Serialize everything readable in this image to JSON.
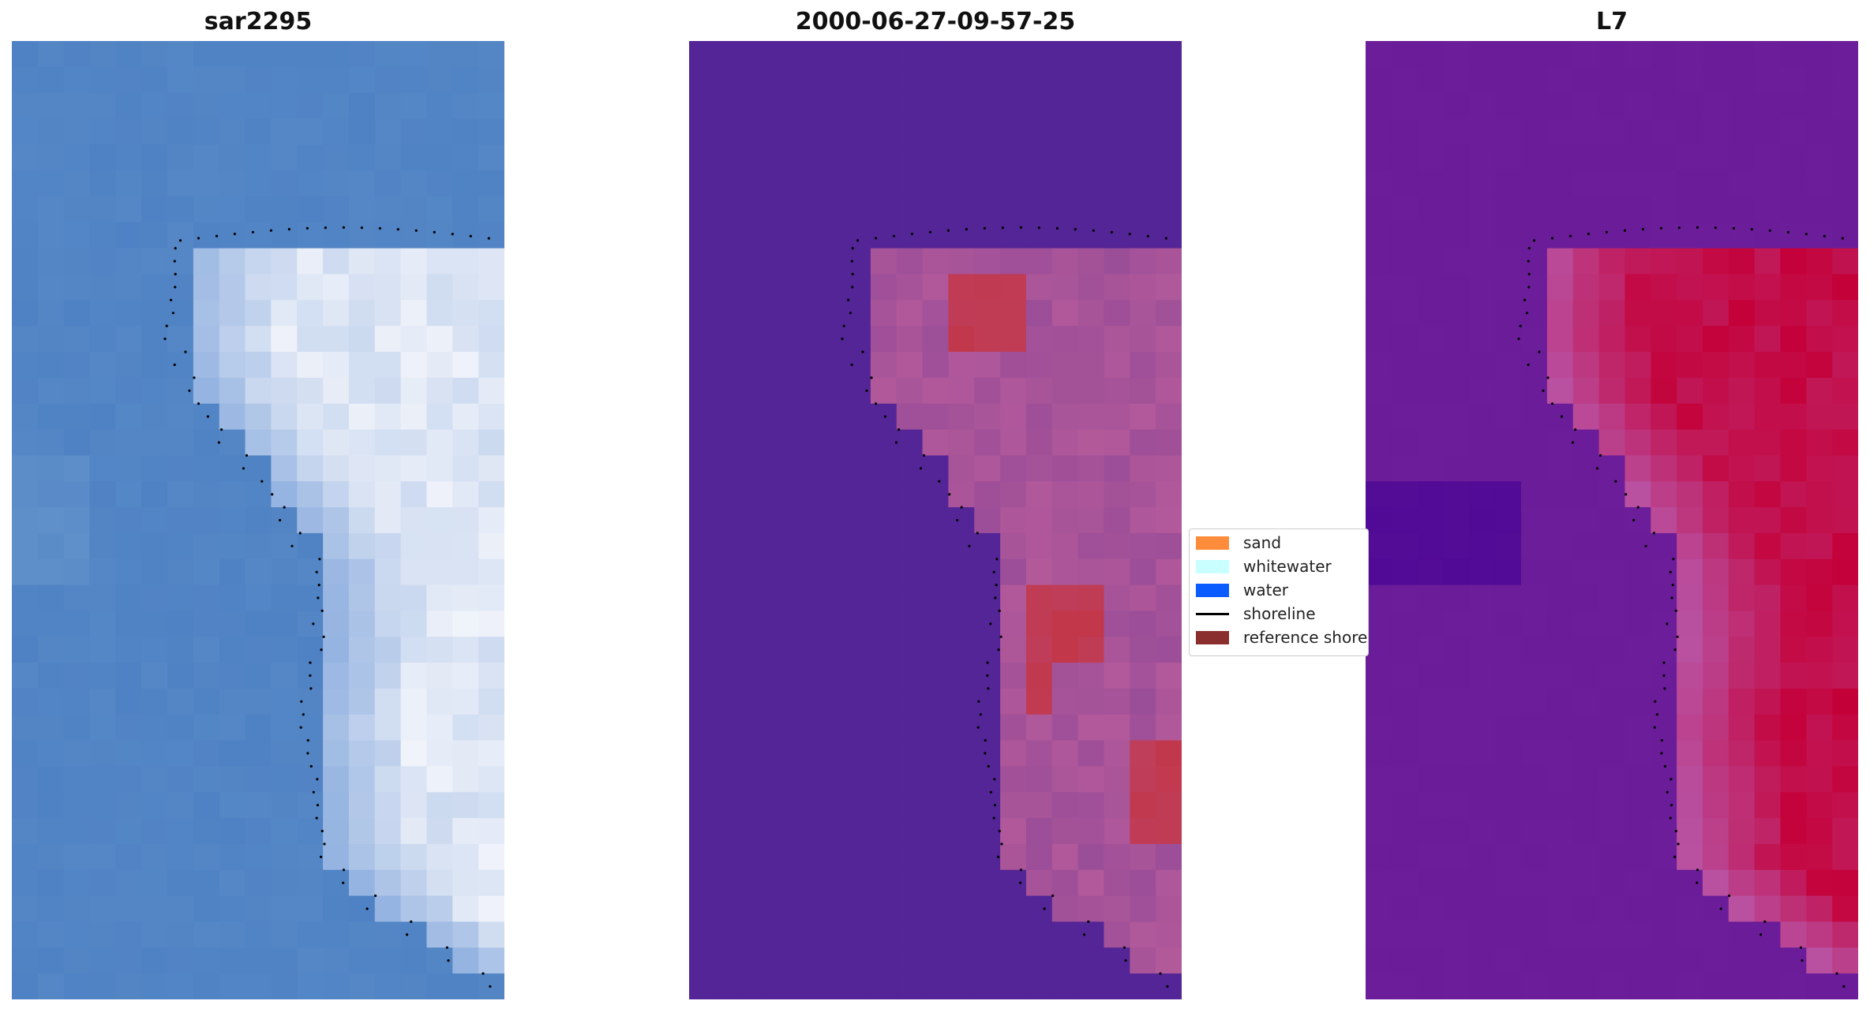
{
  "panels": [
    {
      "title": "sar2295",
      "type": "rgb-image"
    },
    {
      "title": "2000-06-27-09-57-25",
      "type": "classified-image"
    },
    {
      "title": "L7",
      "type": "index-image"
    }
  ],
  "legend": {
    "items": [
      {
        "label": "sand",
        "color": "#ff8c3a",
        "kind": "patch"
      },
      {
        "label": "whitewater",
        "color": "#c9ffff",
        "kind": "patch"
      },
      {
        "label": "water",
        "color": "#0a5cff",
        "kind": "patch"
      },
      {
        "label": "shoreline",
        "color": "#000000",
        "kind": "line"
      },
      {
        "label": "reference shoreline",
        "color": "#8b2e2e",
        "kind": "patch"
      }
    ]
  },
  "colors": {
    "water_rgb": "#4f82c4",
    "water_classified": "#542597",
    "land_classified": "#b2599a",
    "sand_hot": "#c2374a",
    "index_low": "#6a1c99",
    "index_high": "#c40038"
  }
}
